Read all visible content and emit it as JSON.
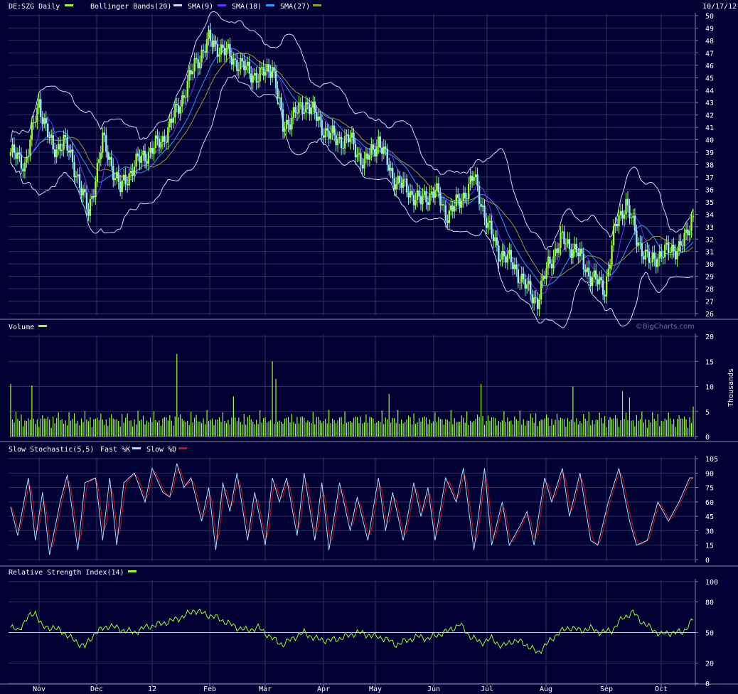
{
  "date_stamp": "10/17/12",
  "watermark": "©BigCharts.com",
  "x_labels": [
    "Nov",
    "Dec",
    "12",
    "Feb",
    "Mar",
    "Apr",
    "May",
    "Jun",
    "Jul",
    "Aug",
    "Sep",
    "Oct"
  ],
  "colors": {
    "background": "#000033",
    "grid": "#333366",
    "up_candle": "#99ff33",
    "down_candle": "#99eeff",
    "bollinger": "#ccddff",
    "sma9": "#6633ff",
    "sma18": "#3399ff",
    "sma27": "#999933",
    "volume": "#99ff33",
    "fast_k": "#aaddff",
    "slow_d": "#cc1111",
    "rsi": "#99ff33",
    "rsi_midline": "#99ff33"
  },
  "chart_data": [
    {
      "type": "candlestick",
      "id": "price",
      "ticker_label": "DE:SZG Daily",
      "legend": [
        {
          "label": "Bollinger Bands(20)",
          "color_key": "bollinger"
        },
        {
          "label": "SMA(9)",
          "color_key": "sma9"
        },
        {
          "label": "SMA(18)",
          "color_key": "sma18"
        },
        {
          "label": "SMA(27)",
          "color_key": "sma27"
        }
      ],
      "ylim": [
        26,
        50
      ],
      "ticks": [
        26,
        27,
        28,
        29,
        30,
        31,
        32,
        33,
        34,
        35,
        36,
        37,
        38,
        39,
        40,
        41,
        42,
        43,
        44,
        45,
        46,
        47,
        48,
        49,
        50
      ],
      "close_anchors": [
        [
          0,
          39
        ],
        [
          8,
          38
        ],
        [
          16,
          43
        ],
        [
          24,
          39
        ],
        [
          30,
          40
        ],
        [
          38,
          37
        ],
        [
          44,
          34
        ],
        [
          52,
          40
        ],
        [
          62,
          36
        ],
        [
          70,
          38
        ],
        [
          78,
          39
        ],
        [
          86,
          40
        ],
        [
          96,
          43
        ],
        [
          104,
          46
        ],
        [
          112,
          48
        ],
        [
          122,
          47
        ],
        [
          130,
          46
        ],
        [
          140,
          45
        ],
        [
          148,
          46
        ],
        [
          154,
          41
        ],
        [
          160,
          42
        ],
        [
          168,
          43
        ],
        [
          176,
          41
        ],
        [
          184,
          40
        ],
        [
          192,
          40
        ],
        [
          200,
          38
        ],
        [
          208,
          40
        ],
        [
          216,
          37
        ],
        [
          224,
          36
        ],
        [
          232,
          35
        ],
        [
          240,
          36
        ],
        [
          246,
          34
        ],
        [
          254,
          35
        ],
        [
          262,
          37
        ],
        [
          270,
          33
        ],
        [
          276,
          31
        ],
        [
          284,
          30
        ],
        [
          292,
          28
        ],
        [
          298,
          27
        ],
        [
          304,
          30
        ],
        [
          312,
          32
        ],
        [
          320,
          31
        ],
        [
          328,
          29
        ],
        [
          336,
          28
        ],
        [
          342,
          33
        ],
        [
          348,
          35
        ],
        [
          354,
          32
        ],
        [
          362,
          30
        ],
        [
          368,
          31
        ],
        [
          374,
          31
        ],
        [
          382,
          32
        ],
        [
          386,
          34
        ]
      ]
    },
    {
      "type": "bar",
      "id": "volume",
      "label": "Volume",
      "unit_label": "Thousands",
      "ylim": [
        0,
        20
      ],
      "ticks": [
        0,
        5,
        10,
        15,
        20
      ],
      "peaks": [
        [
          0,
          10.5
        ],
        [
          12,
          10.2
        ],
        [
          94,
          16.5
        ],
        [
          126,
          8
        ],
        [
          148,
          15
        ],
        [
          150,
          11.5
        ],
        [
          214,
          8.5
        ],
        [
          266,
          10.5
        ],
        [
          318,
          10
        ],
        [
          346,
          9
        ],
        [
          350,
          7.8
        ],
        [
          386,
          6
        ]
      ]
    },
    {
      "type": "line",
      "id": "stochastic",
      "label": "Slow Stochastic(5,5)",
      "series": [
        {
          "name": "Fast %K",
          "color_key": "fast_k"
        },
        {
          "name": "Slow %D",
          "color_key": "slow_d"
        }
      ],
      "ylim": [
        0,
        105
      ],
      "ticks": [
        0,
        15,
        30,
        45,
        60,
        75,
        90,
        105
      ],
      "pivots": [
        [
          0,
          55
        ],
        [
          4,
          25
        ],
        [
          10,
          85
        ],
        [
          14,
          20
        ],
        [
          18,
          70
        ],
        [
          22,
          5
        ],
        [
          28,
          60
        ],
        [
          32,
          88
        ],
        [
          38,
          10
        ],
        [
          42,
          80
        ],
        [
          48,
          85
        ],
        [
          52,
          20
        ],
        [
          56,
          85
        ],
        [
          60,
          15
        ],
        [
          64,
          80
        ],
        [
          70,
          90
        ],
        [
          76,
          60
        ],
        [
          80,
          95
        ],
        [
          86,
          70
        ],
        [
          90,
          65
        ],
        [
          94,
          100
        ],
        [
          98,
          75
        ],
        [
          102,
          85
        ],
        [
          108,
          40
        ],
        [
          112,
          75
        ],
        [
          116,
          10
        ],
        [
          120,
          80
        ],
        [
          124,
          50
        ],
        [
          128,
          90
        ],
        [
          134,
          20
        ],
        [
          138,
          70
        ],
        [
          144,
          15
        ],
        [
          148,
          85
        ],
        [
          152,
          60
        ],
        [
          156,
          85
        ],
        [
          162,
          25
        ],
        [
          166,
          90
        ],
        [
          172,
          20
        ],
        [
          176,
          80
        ],
        [
          180,
          10
        ],
        [
          186,
          80
        ],
        [
          192,
          30
        ],
        [
          196,
          65
        ],
        [
          202,
          20
        ],
        [
          208,
          85
        ],
        [
          212,
          30
        ],
        [
          216,
          70
        ],
        [
          222,
          20
        ],
        [
          228,
          80
        ],
        [
          232,
          45
        ],
        [
          236,
          75
        ],
        [
          240,
          20
        ],
        [
          246,
          85
        ],
        [
          252,
          60
        ],
        [
          256,
          95
        ],
        [
          262,
          10
        ],
        [
          268,
          95
        ],
        [
          272,
          15
        ],
        [
          278,
          60
        ],
        [
          282,
          15
        ],
        [
          288,
          35
        ],
        [
          292,
          50
        ],
        [
          296,
          15
        ],
        [
          302,
          85
        ],
        [
          306,
          60
        ],
        [
          312,
          95
        ],
        [
          316,
          45
        ],
        [
          322,
          90
        ],
        [
          328,
          20
        ],
        [
          332,
          15
        ],
        [
          338,
          60
        ],
        [
          344,
          95
        ],
        [
          350,
          40
        ],
        [
          354,
          15
        ],
        [
          360,
          20
        ],
        [
          366,
          60
        ],
        [
          372,
          40
        ],
        [
          378,
          60
        ],
        [
          384,
          85
        ]
      ]
    },
    {
      "type": "line",
      "id": "rsi",
      "label": "Relative Strength Index(14)",
      "ylim": [
        0,
        100
      ],
      "ticks": [
        0,
        20,
        50,
        80,
        100
      ],
      "midline": 50,
      "anchors": [
        [
          0,
          55
        ],
        [
          4,
          52
        ],
        [
          10,
          65
        ],
        [
          14,
          70
        ],
        [
          18,
          55
        ],
        [
          24,
          55
        ],
        [
          30,
          50
        ],
        [
          36,
          42
        ],
        [
          42,
          36
        ],
        [
          48,
          50
        ],
        [
          56,
          57
        ],
        [
          62,
          53
        ],
        [
          70,
          50
        ],
        [
          76,
          55
        ],
        [
          84,
          58
        ],
        [
          92,
          62
        ],
        [
          98,
          66
        ],
        [
          104,
          72
        ],
        [
          110,
          68
        ],
        [
          116,
          65
        ],
        [
          122,
          60
        ],
        [
          128,
          55
        ],
        [
          134,
          52
        ],
        [
          140,
          55
        ],
        [
          148,
          44
        ],
        [
          154,
          38
        ],
        [
          160,
          45
        ],
        [
          166,
          50
        ],
        [
          172,
          44
        ],
        [
          180,
          42
        ],
        [
          188,
          45
        ],
        [
          196,
          50
        ],
        [
          204,
          47
        ],
        [
          212,
          44
        ],
        [
          218,
          38
        ],
        [
          224,
          42
        ],
        [
          230,
          46
        ],
        [
          236,
          44
        ],
        [
          242,
          48
        ],
        [
          248,
          52
        ],
        [
          254,
          58
        ],
        [
          260,
          46
        ],
        [
          266,
          40
        ],
        [
          272,
          44
        ],
        [
          278,
          36
        ],
        [
          284,
          42
        ],
        [
          290,
          40
        ],
        [
          298,
          30
        ],
        [
          304,
          40
        ],
        [
          310,
          50
        ],
        [
          316,
          55
        ],
        [
          322,
          52
        ],
        [
          328,
          54
        ],
        [
          334,
          50
        ],
        [
          340,
          52
        ],
        [
          346,
          64
        ],
        [
          352,
          70
        ],
        [
          356,
          62
        ],
        [
          362,
          54
        ],
        [
          368,
          48
        ],
        [
          374,
          50
        ],
        [
          380,
          50
        ],
        [
          386,
          63
        ]
      ]
    }
  ]
}
